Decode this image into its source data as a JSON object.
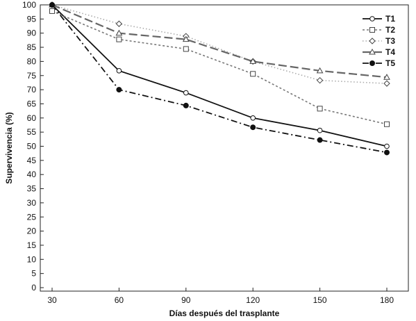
{
  "chart_data": {
    "type": "line",
    "title": "",
    "xlabel": "Días después del trasplante",
    "ylabel": "Supervivencia (%)",
    "x": [
      30,
      60,
      90,
      120,
      150,
      180
    ],
    "xticks": [
      "30",
      "60",
      "90",
      "120",
      "150",
      "180"
    ],
    "ylim": [
      0,
      100
    ],
    "yticks": [
      "0",
      "5",
      "10",
      "15",
      "20",
      "25",
      "30",
      "35",
      "40",
      "45",
      "50",
      "55",
      "60",
      "65",
      "70",
      "75",
      "80",
      "85",
      "90",
      "95",
      "100"
    ],
    "grid": false,
    "legend_position": "top-right",
    "series": [
      {
        "name": "T1",
        "values": [
          100,
          76.7,
          68.9,
          60.0,
          55.6,
          50.0
        ],
        "marker": "circle-open",
        "color": "#111111",
        "dash": "solid"
      },
      {
        "name": "T2",
        "values": [
          97.8,
          87.8,
          84.4,
          75.6,
          63.3,
          57.8
        ],
        "marker": "square-open",
        "color": "#777777",
        "dash": "dotted"
      },
      {
        "name": "T3",
        "values": [
          100,
          93.3,
          88.9,
          80.0,
          73.3,
          72.2
        ],
        "marker": "diamond-open",
        "color": "#aaaaaa",
        "dash": "dotted-fine"
      },
      {
        "name": "T4",
        "values": [
          100,
          90.0,
          87.8,
          80.0,
          76.7,
          74.4
        ],
        "marker": "triangle-open",
        "color": "#666666",
        "dash": "long-dash"
      },
      {
        "name": "T5",
        "values": [
          100,
          70.0,
          64.4,
          56.7,
          52.2,
          47.8
        ],
        "marker": "circle-filled",
        "color": "#111111",
        "dash": "dash-dot"
      }
    ]
  }
}
